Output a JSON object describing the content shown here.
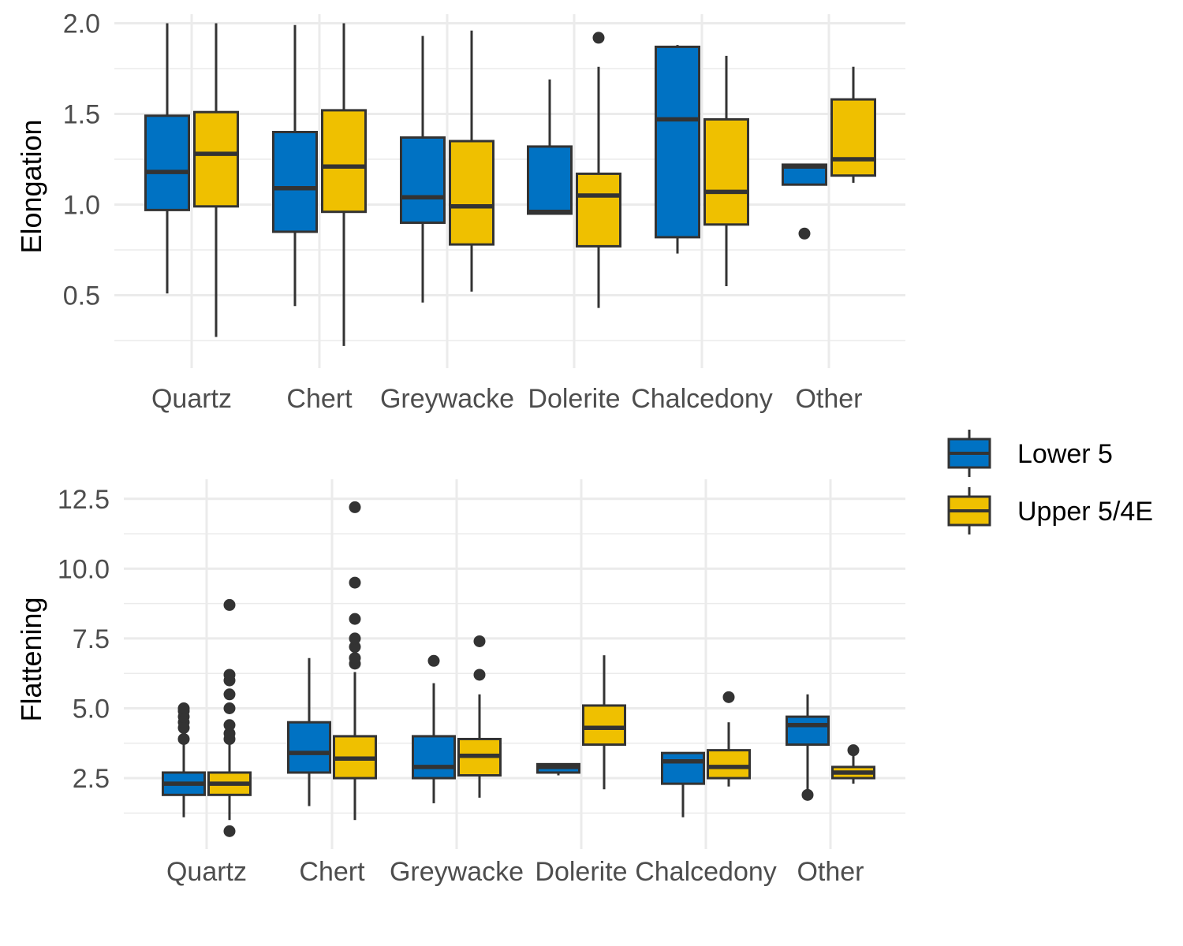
{
  "colors": {
    "lower": "#0072C3",
    "upper": "#EFC000",
    "outline": "#333333",
    "grid": "#EBEBEB"
  },
  "legend": {
    "position": "right",
    "entries": [
      {
        "key": "lower",
        "label": "Lower 5"
      },
      {
        "key": "upper",
        "label": "Upper 5/4E"
      }
    ]
  },
  "chart_data": [
    {
      "type": "box",
      "ylabel": "Elongation",
      "xlabel": "",
      "ylim": [
        0.15,
        2.05
      ],
      "yticks": [
        "0.5",
        "1.0",
        "1.5",
        "2.0"
      ],
      "categories": [
        "Quartz",
        "Chert",
        "Greywacke",
        "Dolerite",
        "Chalcedony",
        "Other"
      ],
      "grid": true,
      "series": [
        {
          "name": "Lower 5",
          "boxes": [
            {
              "min": 0.51,
              "q1": 0.97,
              "median": 1.18,
              "q3": 1.49,
              "max": 2.0,
              "outliers": []
            },
            {
              "min": 0.44,
              "q1": 0.85,
              "median": 1.09,
              "q3": 1.4,
              "max": 1.99,
              "outliers": []
            },
            {
              "min": 0.46,
              "q1": 0.9,
              "median": 1.04,
              "q3": 1.37,
              "max": 1.93,
              "outliers": []
            },
            {
              "min": 0.95,
              "q1": 0.95,
              "median": 0.96,
              "q3": 1.32,
              "max": 1.69,
              "outliers": []
            },
            {
              "min": 0.73,
              "q1": 0.82,
              "median": 1.47,
              "q3": 1.87,
              "max": 1.88,
              "outliers": []
            },
            {
              "min": 1.11,
              "q1": 1.11,
              "median": 1.21,
              "q3": 1.22,
              "max": 1.22,
              "outliers": [
                0.84
              ]
            }
          ]
        },
        {
          "name": "Upper 5/4E",
          "boxes": [
            {
              "min": 0.27,
              "q1": 0.99,
              "median": 1.28,
              "q3": 1.51,
              "max": 2.0,
              "outliers": []
            },
            {
              "min": 0.22,
              "q1": 0.96,
              "median": 1.21,
              "q3": 1.52,
              "max": 2.0,
              "outliers": []
            },
            {
              "min": 0.52,
              "q1": 0.78,
              "median": 0.99,
              "q3": 1.35,
              "max": 1.96,
              "outliers": []
            },
            {
              "min": 0.43,
              "q1": 0.77,
              "median": 1.05,
              "q3": 1.17,
              "max": 1.76,
              "outliers": [
                1.92
              ]
            },
            {
              "min": 0.55,
              "q1": 0.89,
              "median": 1.07,
              "q3": 1.47,
              "max": 1.82,
              "outliers": []
            },
            {
              "min": 1.12,
              "q1": 1.16,
              "median": 1.25,
              "q3": 1.58,
              "max": 1.76,
              "outliers": []
            }
          ]
        }
      ]
    },
    {
      "type": "box",
      "ylabel": "Flattening",
      "xlabel": "",
      "ylim": [
        0.3,
        13.2
      ],
      "yticks": [
        "2.5",
        "5.0",
        "7.5",
        "10.0",
        "12.5"
      ],
      "categories": [
        "Quartz",
        "Chert",
        "Greywacke",
        "Dolerite",
        "Chalcedony",
        "Other"
      ],
      "grid": true,
      "series": [
        {
          "name": "Lower 5",
          "boxes": [
            {
              "min": 1.1,
              "q1": 1.9,
              "median": 2.3,
              "q3": 2.7,
              "max": 3.8,
              "outliers": [
                3.9,
                4.3,
                4.5,
                4.7,
                4.9,
                5.0
              ]
            },
            {
              "min": 1.5,
              "q1": 2.7,
              "median": 3.4,
              "q3": 4.5,
              "max": 6.8,
              "outliers": []
            },
            {
              "min": 1.6,
              "q1": 2.5,
              "median": 2.9,
              "q3": 4.0,
              "max": 5.9,
              "outliers": [
                6.7
              ]
            },
            {
              "min": 2.6,
              "q1": 2.7,
              "median": 2.9,
              "q3": 3.0,
              "max": 3.0,
              "outliers": []
            },
            {
              "min": 1.1,
              "q1": 2.3,
              "median": 3.1,
              "q3": 3.4,
              "max": 3.4,
              "outliers": []
            },
            {
              "min": 2.1,
              "q1": 3.7,
              "median": 4.4,
              "q3": 4.7,
              "max": 5.5,
              "outliers": [
                1.9
              ]
            }
          ]
        },
        {
          "name": "Upper 5/4E",
          "boxes": [
            {
              "min": 1.0,
              "q1": 1.9,
              "median": 2.3,
              "q3": 2.7,
              "max": 3.7,
              "outliers": [
                0.6,
                3.9,
                4.1,
                4.4,
                5.0,
                5.5,
                6.0,
                6.2,
                8.7
              ]
            },
            {
              "min": 1.0,
              "q1": 2.5,
              "median": 3.2,
              "q3": 4.0,
              "max": 6.3,
              "outliers": [
                6.6,
                6.8,
                7.2,
                7.5,
                8.2,
                9.5,
                12.2
              ]
            },
            {
              "min": 1.8,
              "q1": 2.6,
              "median": 3.3,
              "q3": 3.9,
              "max": 5.5,
              "outliers": [
                6.2,
                7.4
              ]
            },
            {
              "min": 2.1,
              "q1": 3.7,
              "median": 4.3,
              "q3": 5.1,
              "max": 6.9,
              "outliers": []
            },
            {
              "min": 2.2,
              "q1": 2.5,
              "median": 2.9,
              "q3": 3.5,
              "max": 4.5,
              "outliers": [
                5.4
              ]
            },
            {
              "min": 2.3,
              "q1": 2.5,
              "median": 2.7,
              "q3": 2.9,
              "max": 3.4,
              "outliers": [
                3.5
              ]
            }
          ]
        }
      ]
    }
  ]
}
